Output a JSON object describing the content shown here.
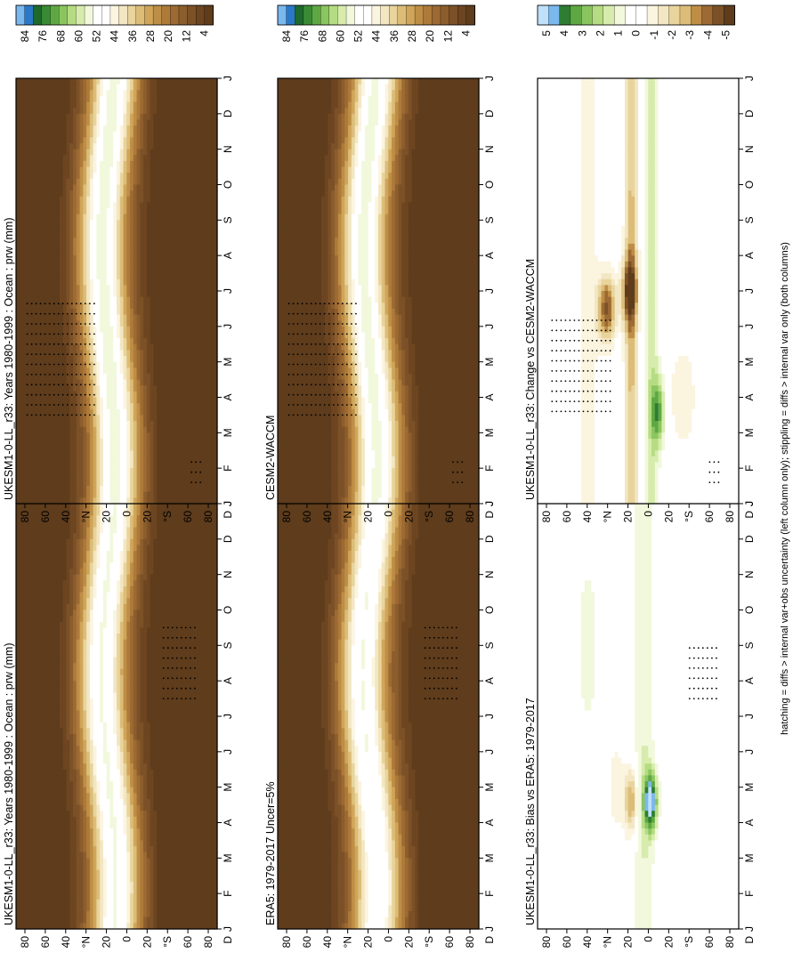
{
  "footnote": "hatching = diffs > internal var+obs uncertainty (left column only); stippling = diffs > internal var only (both columns)",
  "colors": {
    "mean_palette": [
      "#5e3c1c",
      "#6d4521",
      "#7c5127",
      "#8c5d2d",
      "#9c6a32",
      "#ad7a3a",
      "#be8e46",
      "#d0a55a",
      "#dcbd78",
      "#e8d49c",
      "#f3e6c2",
      "#fbf4df",
      "#ffffff",
      "#ffffff",
      "#f1f8dc",
      "#d7ecac",
      "#b6dc83",
      "#8bc560",
      "#5ea843",
      "#3a8a35",
      "#1e6a2c",
      "#2b78c8",
      "#7ab8ee"
    ],
    "diff_palette": [
      "#5e3c1c",
      "#7c5127",
      "#9c6a32",
      "#be8e46",
      "#dcbd78",
      "#e8d49c",
      "#f3e6c2",
      "#fbf4df",
      "#ffffff",
      "#ffffff",
      "#f1f8dc",
      "#d7ecac",
      "#b6dc83",
      "#8bc560",
      "#5ea843",
      "#2e7d32",
      "#7ab8ee",
      "#bfe0f8"
    ]
  },
  "chart_data": [
    {
      "type": "heatmap",
      "title": "UKESM1-0-LL_r33: Years 1980-1999 : Ocean : prw (mm)",
      "x_ticks": [
        "J",
        "F",
        "M",
        "A",
        "M",
        "J",
        "J",
        "A",
        "S",
        "O",
        "N",
        "D",
        "J"
      ],
      "y_ticks": [
        "80",
        "60",
        "40",
        "°N",
        "20",
        "0",
        "20",
        "°S",
        "60",
        "80"
      ],
      "y_end_label": "D",
      "colorbar": {
        "labels": [
          "84",
          "76",
          "68",
          "60",
          "52",
          "44",
          "36",
          "28",
          "20",
          "12",
          "4"
        ]
      },
      "field": "mean",
      "zlim": [
        0,
        88
      ],
      "stippling": "stipple_left_top"
    },
    {
      "type": "heatmap",
      "title": "UKESM1-0-LL_r33: Years 1980-1999 : Ocean : prw (mm)",
      "x_ticks": [
        "J",
        "F",
        "M",
        "A",
        "M",
        "J",
        "J",
        "A",
        "S",
        "O",
        "N",
        "D",
        "J"
      ],
      "y_ticks": [
        "80",
        "60",
        "40",
        "°N",
        "20",
        "0",
        "20",
        "°S",
        "60",
        "80"
      ],
      "y_end_label": "D",
      "colorbar": {
        "labels": [
          "84",
          "76",
          "68",
          "60",
          "52",
          "44",
          "36",
          "28",
          "20",
          "12",
          "4"
        ]
      },
      "field": "mean",
      "zlim": [
        0,
        88
      ],
      "stippling": "stipple_right_top"
    },
    {
      "type": "heatmap",
      "title": "ERA5: 1979-2017 Uncer=5%",
      "x_ticks": [
        "J",
        "F",
        "M",
        "A",
        "M",
        "J",
        "J",
        "A",
        "S",
        "O",
        "N",
        "D",
        "J"
      ],
      "y_ticks": [
        "80",
        "60",
        "40",
        "°N",
        "20",
        "0",
        "20",
        "°S",
        "60",
        "80"
      ],
      "y_end_label": "D",
      "colorbar": {
        "labels": [
          "84",
          "76",
          "68",
          "60",
          "52",
          "44",
          "36",
          "28",
          "20",
          "12",
          "4"
        ]
      },
      "field": "mean",
      "zlim": [
        0,
        88
      ],
      "stippling": "stipple_left_mid"
    },
    {
      "type": "heatmap",
      "title": "CESM2-WACCM",
      "x_ticks": [
        "J",
        "F",
        "M",
        "A",
        "M",
        "J",
        "J",
        "A",
        "S",
        "O",
        "N",
        "D",
        "J"
      ],
      "y_ticks": [
        "80",
        "60",
        "40",
        "°N",
        "20",
        "0",
        "20",
        "°S",
        "60",
        "80"
      ],
      "y_end_label": "D",
      "colorbar": {
        "labels": [
          "84",
          "76",
          "68",
          "60",
          "52",
          "44",
          "36",
          "28",
          "20",
          "12",
          "4"
        ]
      },
      "field": "mean",
      "zlim": [
        0,
        88
      ],
      "stippling": "stipple_right_mid"
    },
    {
      "type": "heatmap",
      "title": "UKESM1-0-LL_r33: Bias vs ERA5: 1979-2017",
      "x_ticks": [
        "J",
        "F",
        "M",
        "A",
        "M",
        "J",
        "J",
        "A",
        "S",
        "O",
        "N",
        "D",
        "J"
      ],
      "y_ticks": [
        "80",
        "60",
        "40",
        "°N",
        "20",
        "0",
        "20",
        "°S",
        "60",
        "80"
      ],
      "y_end_label": "D",
      "colorbar": {
        "labels": [
          "5",
          "4",
          "3",
          "2",
          "1",
          "0",
          "-1",
          "-2",
          "-3",
          "-4",
          "-5"
        ]
      },
      "field": "bias",
      "zlim": [
        -5.5,
        5.5
      ],
      "stippling": "stipple_left_bot"
    },
    {
      "type": "heatmap",
      "title": "UKESM1-0-LL_r33: Change vs CESM2-WACCM",
      "x_ticks": [
        "J",
        "F",
        "M",
        "A",
        "M",
        "J",
        "J",
        "A",
        "S",
        "O",
        "N",
        "D",
        "J"
      ],
      "y_ticks": [
        "80",
        "60",
        "40",
        "°N",
        "20",
        "0",
        "20",
        "°S",
        "60",
        "80"
      ],
      "y_end_label": "D",
      "colorbar": {
        "labels": [
          "5",
          "4",
          "3",
          "2",
          "1",
          "0",
          "-1",
          "-2",
          "-3",
          "-4",
          "-5"
        ]
      },
      "field": "change",
      "zlim": [
        -5.5,
        5.5
      ],
      "stippling": "stipple_right_bot"
    }
  ]
}
